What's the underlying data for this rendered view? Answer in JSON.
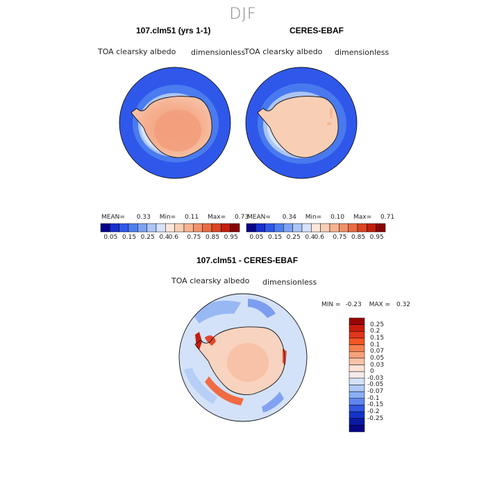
{
  "season": "DJF",
  "panels": [
    {
      "title": "107.clm51 (yrs 1-1)",
      "variable": "TOA clearsky albedo",
      "units": "dimensionless",
      "stats": {
        "mean_label": "MEAN=",
        "mean": "0.33",
        "min_label": "Min=",
        "min": "0.11",
        "max_label": "Max=",
        "max": "0.73"
      }
    },
    {
      "title": "CERES-EBAF",
      "variable": "TOA clearsky albedo",
      "units": "dimensionless",
      "stats": {
        "mean_label": "MEAN=",
        "mean": "0.34",
        "min_label": "Min=",
        "min": "0.10",
        "max_label": "Max=",
        "max": "0.71"
      }
    }
  ],
  "diff_panel": {
    "title": "107.clm51 - CERES-EBAF",
    "variable": "TOA clearsky albedo",
    "units": "dimensionless",
    "min_label": "MIN =",
    "min": "-0.23",
    "max_label": "MAX =",
    "max": "0.32"
  },
  "colorbars": {
    "abs": {
      "ticks": [
        "0.05",
        "0.15",
        "0.25",
        "0.4",
        "0.6",
        "0.75",
        "0.85",
        "0.95"
      ],
      "colors": [
        "#08048a",
        "#1a2fd0",
        "#2f58ea",
        "#4e7ff0",
        "#7ea3f4",
        "#abc5f6",
        "#d6e3f8",
        "#fbe7da",
        "#f8cfb5",
        "#f5b38f",
        "#f1926b",
        "#ea6d45",
        "#dc4523",
        "#c2200c",
        "#8a0606"
      ]
    },
    "diff": {
      "labels": [
        "0.25",
        "0.2",
        "0.15",
        "0.1",
        "0.07",
        "0.05",
        "0.03",
        "0",
        "-0.03",
        "-0.05",
        "-0.07",
        "-0.1",
        "-0.15",
        "-0.2",
        "-0.25"
      ],
      "colors": [
        "#9a0606",
        "#c81c0c",
        "#e2361a",
        "#f45625",
        "#f6804f",
        "#f6a27c",
        "#f7c3a8",
        "#fbe2d4",
        "#f5eaea",
        "#d3e2f8",
        "#b0c9f6",
        "#8aaef3",
        "#5f86ee",
        "#3358e0",
        "#1433c8",
        "#0a1aa4",
        "#070788"
      ]
    }
  }
}
